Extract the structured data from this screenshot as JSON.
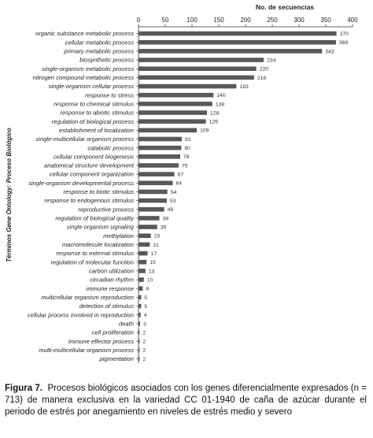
{
  "chart_data": {
    "type": "bar",
    "orientation": "horizontal",
    "title": "",
    "xlabel": "No. de secuencias",
    "ylabel": "Términos Gene Ontology: Proceso Biológico",
    "xlim": [
      0,
      400
    ],
    "xticks": [
      "0",
      "50",
      "100",
      "150",
      "200",
      "250",
      "300",
      "350",
      "400"
    ],
    "xaxis_position": "top",
    "grid": false,
    "bar_color": "#595959",
    "categories": [
      "organic substance metabolic process",
      "cellular metabolic process",
      "primary metabolic process",
      "biosynthetic process",
      "single-organism metabolic process",
      "nitrogen compound metabolic process",
      "single-organism cellular process",
      "response to stress",
      "response to chemical stimulus",
      "response to abiotic stimulus",
      "regulation of biological process",
      "establishment of localization",
      "single-multicellular organism process",
      "catabolic process",
      "cellular component biogenesis",
      "anatomical structure development",
      "cellular component organization",
      "single-organism developmental process",
      "response to biotic stimulus",
      "response to endogenous stimulus",
      "reproductive process",
      "regulation of biological quality",
      "single organism signaling",
      "methylation",
      "macromolecule localization",
      "response to external stimulus",
      "regulation of molecular function",
      "carbon utilization",
      "circadian rhythm",
      "immune response",
      "multicellular organism reproduction",
      "detection of stimulus",
      "cellular process involved in reproduction",
      "death",
      "cell proliferation",
      "immune effector process",
      "multi-multicellular organism process",
      "pigmentation"
    ],
    "values": [
      370,
      369,
      343,
      234,
      220,
      216,
      183,
      140,
      138,
      128,
      126,
      109,
      81,
      80,
      78,
      75,
      67,
      64,
      54,
      53,
      48,
      39,
      35,
      23,
      21,
      17,
      15,
      13,
      10,
      8,
      5,
      5,
      4,
      3,
      2,
      2,
      2,
      2
    ]
  },
  "caption": {
    "label": "Figura 7.",
    "text": "Procesos biológicos asociados con los genes diferencialmente expresados (n = 713) de manera exclusiva en la variedad CC 01-1940 de caña de azúcar durante el periodo de estrés por anegamiento en niveles de estrés medio y severo"
  }
}
